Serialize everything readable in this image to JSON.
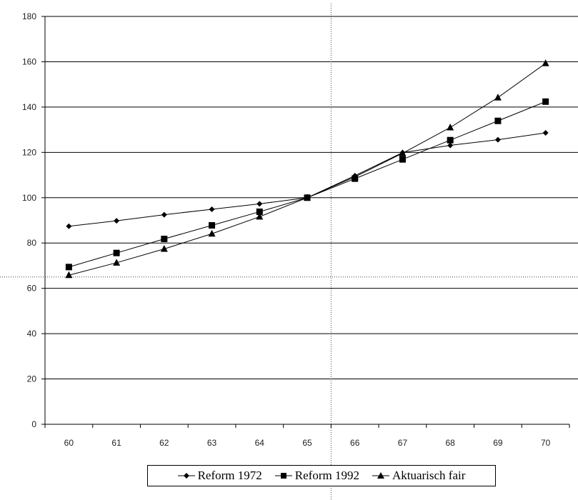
{
  "chart_data": {
    "type": "line",
    "title": "",
    "xlabel": "",
    "ylabel": "",
    "categories": [
      "60",
      "61",
      "62",
      "63",
      "64",
      "65",
      "66",
      "67",
      "68",
      "69",
      "70"
    ],
    "ylim": [
      0,
      180
    ],
    "yticks": [
      0,
      20,
      40,
      60,
      80,
      100,
      120,
      140,
      160,
      180
    ],
    "grid": "horizontal",
    "legend_position": "bottom",
    "reference_lines": {
      "vertical_x": 65.5,
      "horizontal_y": 65
    },
    "series": [
      {
        "name": "Reform 1972",
        "marker": "diamond",
        "values": [
          87.4,
          89.8,
          92.5,
          94.9,
          97.3,
          100,
          109.7,
          119.9,
          123.1,
          125.6,
          128.6
        ]
      },
      {
        "name": "Reform 1992",
        "marker": "square",
        "values": [
          69.4,
          75.6,
          81.8,
          87.8,
          93.8,
          100,
          108.4,
          116.9,
          125.4,
          133.9,
          142.4
        ]
      },
      {
        "name": "Aktuarisch fair",
        "marker": "triangle",
        "values": [
          65.8,
          71.3,
          77.4,
          84.1,
          91.6,
          100,
          109.2,
          119.6,
          131,
          144.2,
          159.3
        ]
      }
    ]
  }
}
